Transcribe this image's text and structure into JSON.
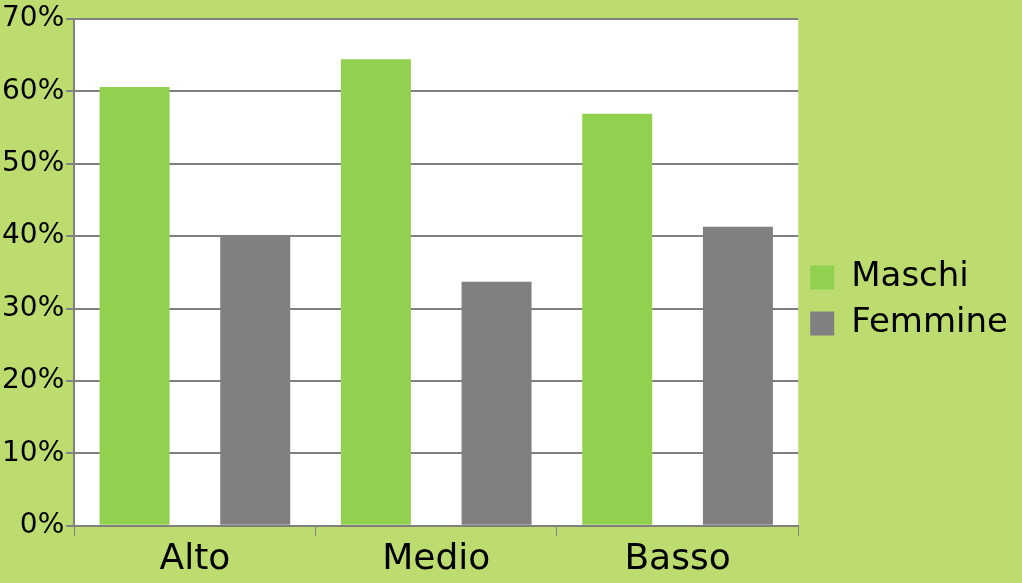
{
  "chart_data": {
    "type": "bar",
    "categories": [
      "Alto",
      "Medio",
      "Basso"
    ],
    "series": [
      {
        "name": "Maschi",
        "color": "#92d050",
        "values": [
          60.6,
          64.4,
          56.9
        ]
      },
      {
        "name": "Femmine",
        "color": "#808080",
        "values": [
          40.1,
          33.7,
          41.3
        ]
      }
    ],
    "ylim": [
      0,
      70
    ],
    "yticks": [
      {
        "value": 0,
        "label": "0%"
      },
      {
        "value": 10,
        "label": "10%"
      },
      {
        "value": 20,
        "label": "20%"
      },
      {
        "value": 30,
        "label": "30%"
      },
      {
        "value": 40,
        "label": "40%"
      },
      {
        "value": 50,
        "label": "50%"
      },
      {
        "value": 60,
        "label": "60%"
      },
      {
        "value": 70,
        "label": "70%"
      }
    ],
    "grid": "y",
    "legend": "right"
  }
}
